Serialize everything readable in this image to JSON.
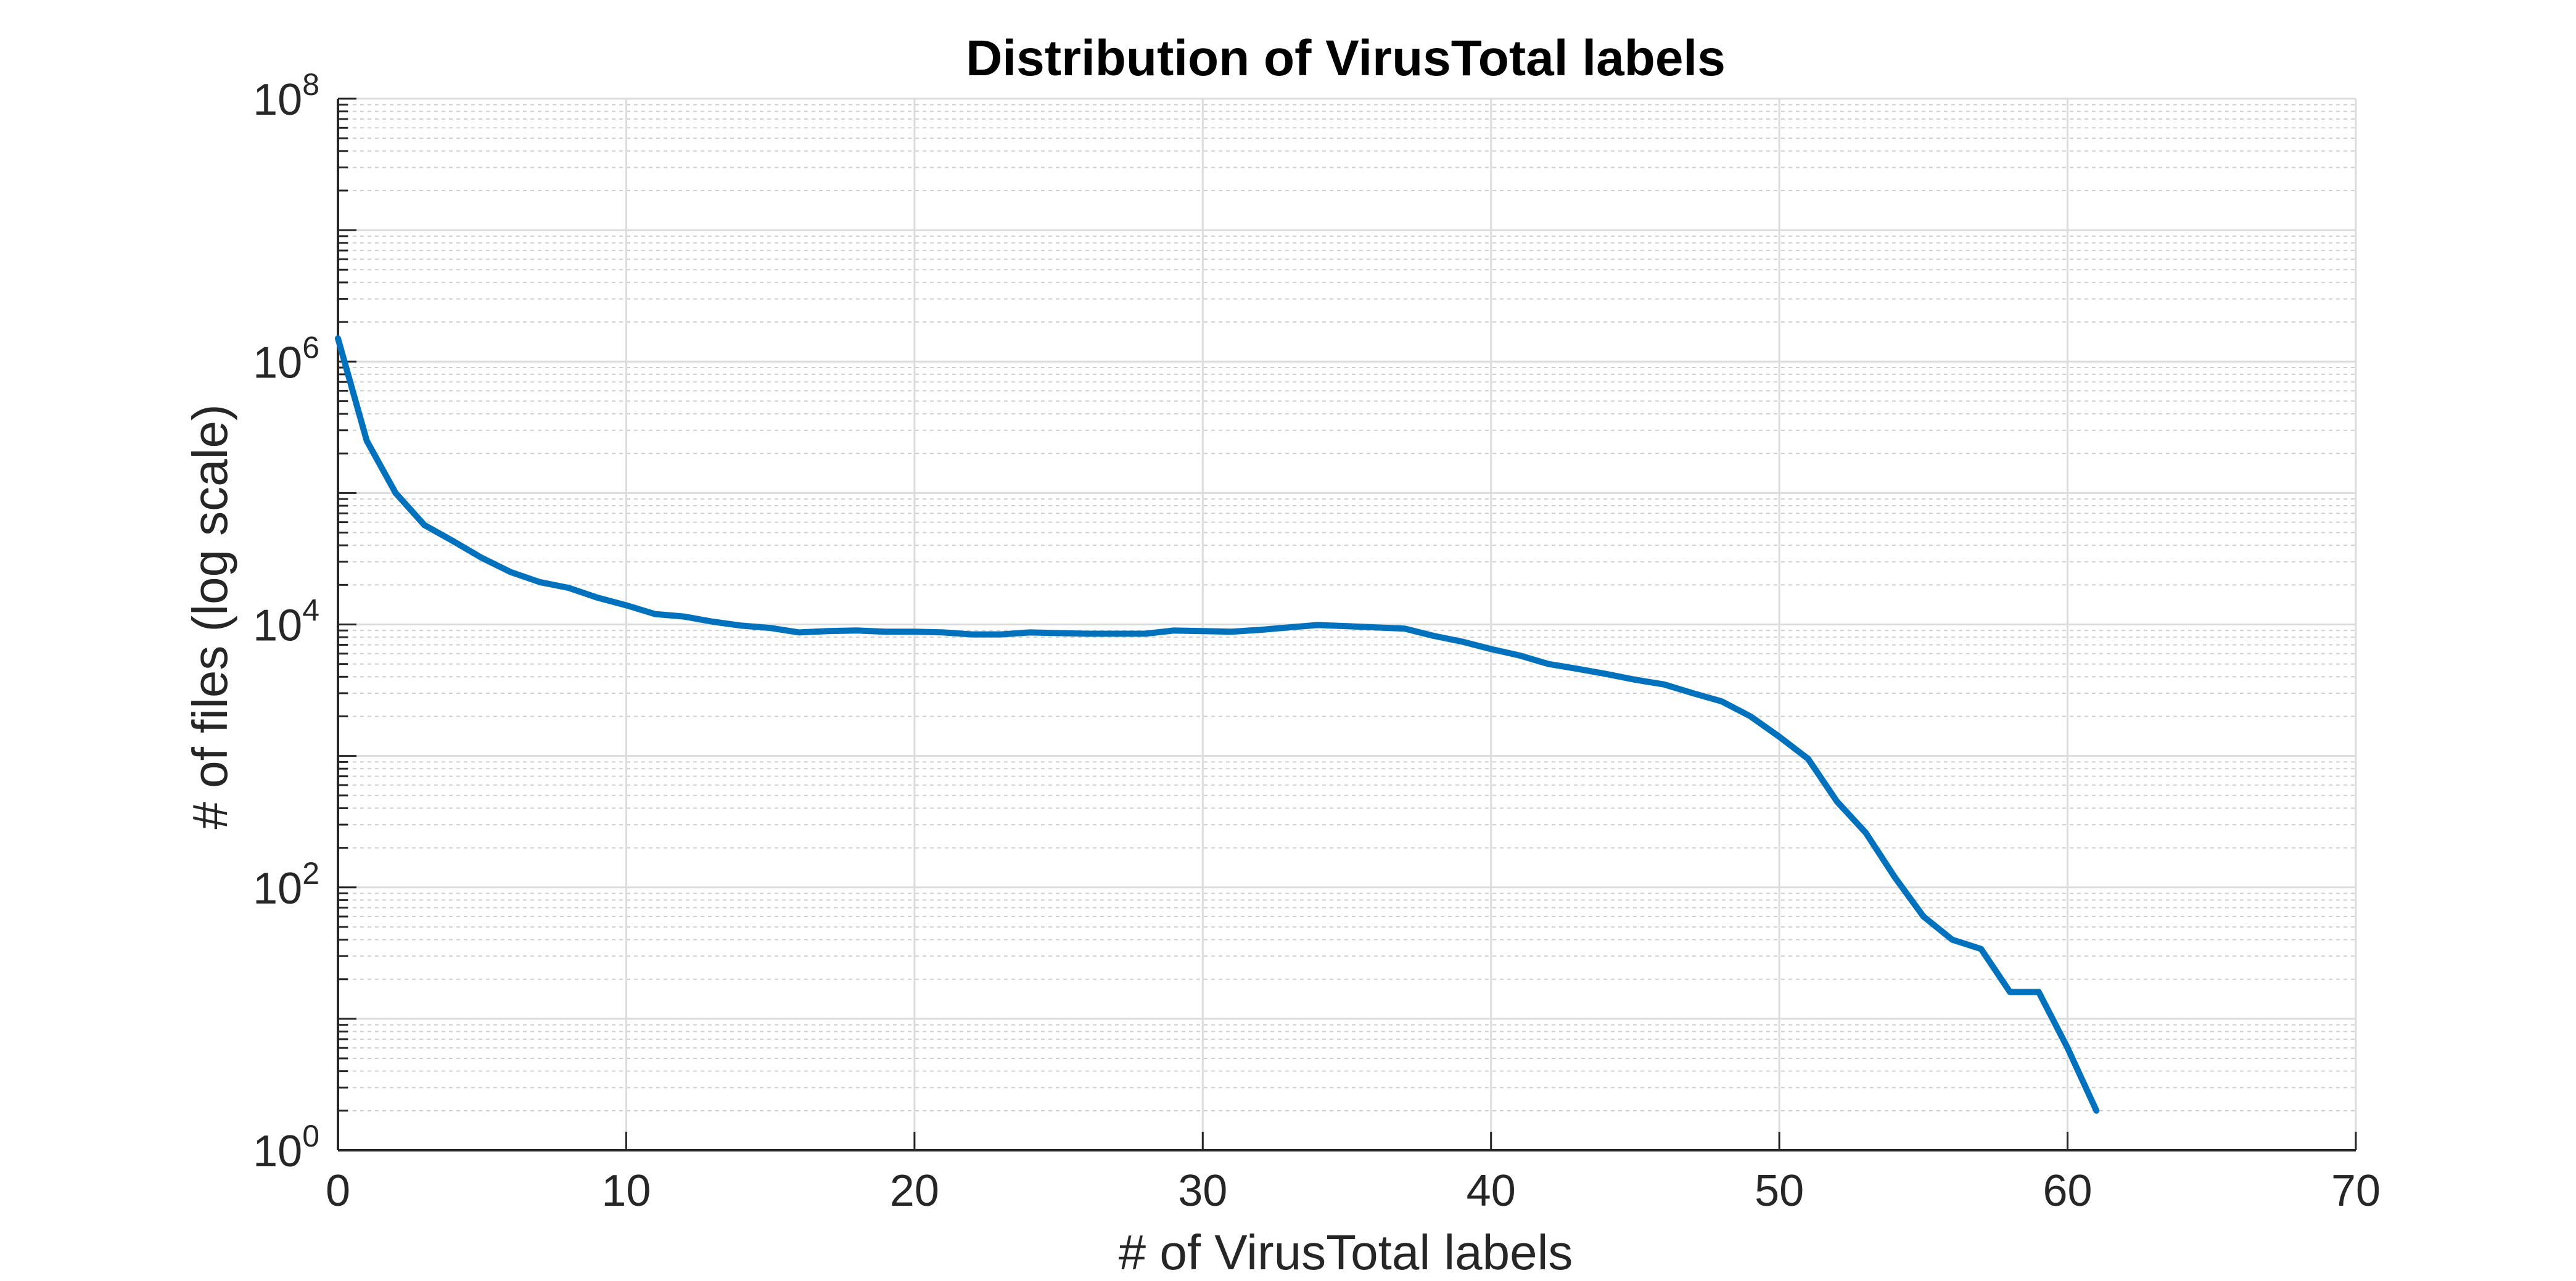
{
  "chart_data": {
    "type": "line",
    "title": "Distribution of VirusTotal labels",
    "xlabel": "# of VirusTotal labels",
    "ylabel": "# of files (log scale)",
    "xlim": [
      0,
      70
    ],
    "ylim": [
      1,
      100000000
    ],
    "y_scale": "log",
    "grid": "on",
    "x_ticks": [
      "0",
      "10",
      "20",
      "30",
      "40",
      "50",
      "60",
      "70"
    ],
    "y_ticks": [
      {
        "base": "10",
        "exp": "0"
      },
      {
        "base": "10",
        "exp": "2"
      },
      {
        "base": "10",
        "exp": "4"
      },
      {
        "base": "10",
        "exp": "6"
      },
      {
        "base": "10",
        "exp": "8"
      }
    ],
    "series": [
      {
        "color": "#0072bd",
        "x": [
          0,
          1,
          2,
          3,
          4,
          5,
          6,
          7,
          8,
          9,
          10,
          11,
          12,
          13,
          14,
          15,
          16,
          17,
          18,
          19,
          20,
          21,
          22,
          23,
          24,
          25,
          26,
          27,
          28,
          29,
          30,
          31,
          32,
          33,
          34,
          35,
          36,
          37,
          38,
          39,
          40,
          41,
          42,
          43,
          44,
          45,
          46,
          47,
          48,
          49,
          50,
          51,
          52,
          53,
          54,
          55,
          56,
          57,
          58,
          59,
          60,
          61
        ],
        "y": [
          1500000,
          250000,
          100000,
          57000,
          43000,
          32000,
          25000,
          21000,
          19000,
          16000,
          14000,
          12000,
          11500,
          10500,
          9800,
          9400,
          8700,
          8900,
          9000,
          8800,
          8800,
          8700,
          8400,
          8400,
          8700,
          8600,
          8500,
          8500,
          8500,
          9000,
          8900,
          8800,
          9100,
          9500,
          9900,
          9700,
          9500,
          9300,
          8200,
          7400,
          6500,
          5800,
          5000,
          4600,
          4200,
          3800,
          3500,
          3000,
          2600,
          2000,
          1400,
          950,
          450,
          260,
          120,
          60,
          40,
          34,
          16,
          16,
          6,
          2
        ]
      }
    ]
  }
}
